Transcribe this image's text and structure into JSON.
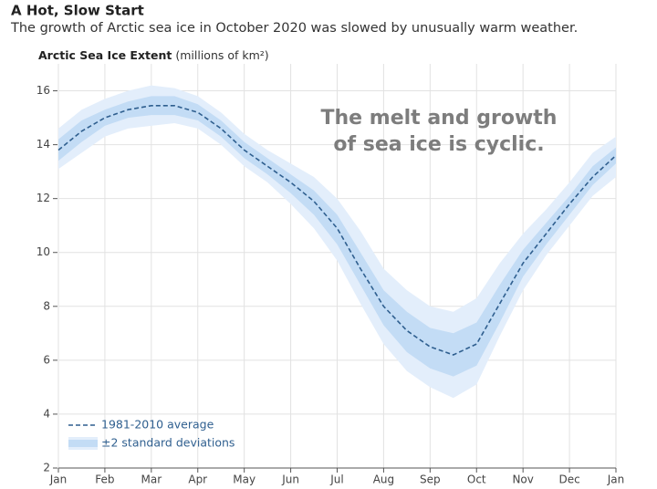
{
  "chart_data": {
    "type": "line",
    "title": "A Hot, Slow Start",
    "subtitle": "The growth of Arctic sea ice in October 2020 was slowed by unusually warm weather.",
    "ylabel": "Arctic Sea Ice Extent",
    "ylabel_unit": "(millions of km²)",
    "annotation": [
      "The melt and growth",
      "of sea ice is cyclic."
    ],
    "categories": [
      "Jan",
      null,
      "Feb",
      null,
      "Mar",
      null,
      "Apr",
      null,
      "May",
      null,
      "Jun",
      null,
      "Jul",
      null,
      "Aug",
      null,
      "Sep",
      null,
      "Oct",
      null,
      "Nov",
      null,
      "Dec",
      null,
      "Jan"
    ],
    "series": [
      {
        "name": "1981-2010 average",
        "color": "#2f5f8f",
        "values": [
          13.8,
          14.5,
          15.0,
          15.3,
          15.45,
          15.45,
          15.2,
          14.6,
          13.8,
          13.2,
          12.6,
          11.9,
          10.9,
          9.4,
          8.0,
          7.1,
          6.5,
          6.2,
          6.6,
          8.1,
          9.6,
          10.7,
          11.8,
          12.8,
          13.6
        ]
      }
    ],
    "bands": [
      {
        "name": "±2 standard deviations",
        "color": "#e3eefb",
        "lower": [
          13.1,
          13.7,
          14.3,
          14.6,
          14.7,
          14.8,
          14.6,
          14.0,
          13.2,
          12.6,
          11.8,
          10.9,
          9.7,
          8.1,
          6.6,
          5.6,
          5.0,
          4.6,
          5.1,
          6.9,
          8.6,
          9.9,
          11.0,
          12.1,
          12.8
        ],
        "upper": [
          14.6,
          15.3,
          15.7,
          16.0,
          16.2,
          16.1,
          15.8,
          15.2,
          14.4,
          13.8,
          13.3,
          12.8,
          12.0,
          10.8,
          9.4,
          8.6,
          8.0,
          7.8,
          8.3,
          9.6,
          10.7,
          11.6,
          12.6,
          13.7,
          14.3
        ]
      },
      {
        "color": "#c3dcf5",
        "lower": [
          13.4,
          14.1,
          14.7,
          15.0,
          15.1,
          15.1,
          14.9,
          14.3,
          13.5,
          12.9,
          12.2,
          11.4,
          10.3,
          8.8,
          7.3,
          6.3,
          5.7,
          5.4,
          5.8,
          7.4,
          9.1,
          10.3,
          11.4,
          12.5,
          13.3
        ],
        "upper": [
          14.2,
          14.9,
          15.3,
          15.6,
          15.8,
          15.8,
          15.5,
          14.9,
          14.1,
          13.5,
          12.9,
          12.3,
          11.4,
          10.0,
          8.6,
          7.8,
          7.2,
          7.0,
          7.4,
          8.8,
          10.1,
          11.1,
          12.1,
          13.2,
          13.9
        ]
      }
    ],
    "ylim": [
      2,
      17
    ],
    "yticks": [
      2,
      4,
      6,
      8,
      10,
      12,
      14,
      16
    ],
    "grid": true
  }
}
